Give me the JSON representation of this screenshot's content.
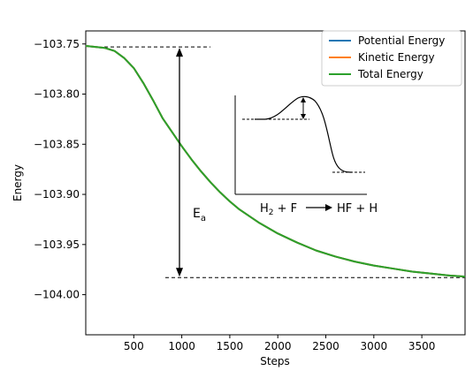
{
  "chart_data": {
    "type": "line",
    "xlabel": "Steps",
    "ylabel": "Energy",
    "xlim": [
      0,
      3950
    ],
    "ylim": [
      -104.04,
      -103.737
    ],
    "xticks": [
      500,
      1000,
      1500,
      2000,
      2500,
      3000,
      3500
    ],
    "xtick_labels": [
      "500",
      "1000",
      "1500",
      "2000",
      "2500",
      "3000",
      "3500"
    ],
    "yticks": [
      -103.75,
      -103.8,
      -103.85,
      -103.9,
      -103.95,
      -104.0
    ],
    "ytick_labels": [
      "−103.75",
      "−103.80",
      "−103.85",
      "−103.90",
      "−103.95",
      "−104.00"
    ],
    "grid": false,
    "legend_position": "top-right",
    "series": [
      {
        "name": "Potential Energy",
        "color": "#1f77b4",
        "x": [
          0,
          200,
          300,
          400,
          500,
          600,
          700,
          800,
          900,
          1000,
          1100,
          1200,
          1300,
          1400,
          1500,
          1600,
          1800,
          2000,
          2200,
          2400,
          2600,
          2800,
          3000,
          3200,
          3400,
          3600,
          3800,
          3950
        ],
        "y": [
          -103.752,
          -103.754,
          -103.757,
          -103.764,
          -103.774,
          -103.789,
          -103.806,
          -103.824,
          -103.838,
          -103.852,
          -103.865,
          -103.877,
          -103.888,
          -103.898,
          -103.907,
          -103.915,
          -103.928,
          -103.939,
          -103.948,
          -103.956,
          -103.962,
          -103.967,
          -103.971,
          -103.974,
          -103.977,
          -103.979,
          -103.981,
          -103.982
        ]
      },
      {
        "name": "Kinetic Energy",
        "color": "#ff7f0e",
        "x": [
          0,
          200,
          300,
          400,
          500,
          600,
          700,
          800,
          900,
          1000,
          1100,
          1200,
          1300,
          1400,
          1500,
          1600,
          1800,
          2000,
          2200,
          2400,
          2600,
          2800,
          3000,
          3200,
          3400,
          3600,
          3800,
          3950
        ],
        "y": [
          -103.752,
          -103.754,
          -103.757,
          -103.764,
          -103.774,
          -103.789,
          -103.806,
          -103.824,
          -103.838,
          -103.852,
          -103.865,
          -103.877,
          -103.888,
          -103.898,
          -103.907,
          -103.915,
          -103.928,
          -103.939,
          -103.948,
          -103.956,
          -103.962,
          -103.967,
          -103.971,
          -103.974,
          -103.977,
          -103.979,
          -103.981,
          -103.982
        ]
      },
      {
        "name": "Total Energy",
        "color": "#2ca02c",
        "x": [
          0,
          200,
          300,
          400,
          500,
          600,
          700,
          800,
          900,
          1000,
          1100,
          1200,
          1300,
          1400,
          1500,
          1600,
          1800,
          2000,
          2200,
          2400,
          2600,
          2800,
          3000,
          3200,
          3400,
          3600,
          3800,
          3950
        ],
        "y": [
          -103.752,
          -103.754,
          -103.757,
          -103.764,
          -103.774,
          -103.789,
          -103.806,
          -103.824,
          -103.838,
          -103.852,
          -103.865,
          -103.877,
          -103.888,
          -103.898,
          -103.907,
          -103.915,
          -103.928,
          -103.939,
          -103.948,
          -103.956,
          -103.962,
          -103.967,
          -103.971,
          -103.974,
          -103.977,
          -103.979,
          -103.981,
          -103.982
        ]
      }
    ],
    "annotations": {
      "activation_label_main": "E",
      "activation_label_sub": "a",
      "reaction_lhs_main": "H",
      "reaction_lhs_sub": "2",
      "reaction_lhs_rest": " + F",
      "reaction_rhs": "HF + H",
      "upper_reference_y": -103.753,
      "lower_reference_y": -103.983
    }
  }
}
